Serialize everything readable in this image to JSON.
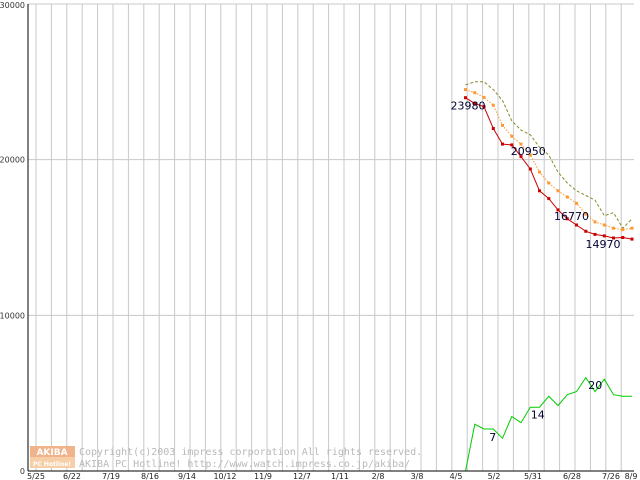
{
  "chart_data": {
    "type": "line",
    "xlabel": "",
    "ylabel": "",
    "ylim": [
      0,
      30000
    ],
    "grid": true,
    "legend": "none",
    "x_ticks": [
      "5/25",
      "6/22",
      "7/19",
      "8/16",
      "9/14",
      "10/12",
      "11/9",
      "12/7",
      "1/11",
      "2/8",
      "3/8",
      "4/5",
      "5/2",
      "5/31",
      "6/28",
      "7/26",
      "8/9"
    ],
    "y_ticks": [
      "0",
      "10000",
      "20000",
      "30000"
    ],
    "series": [
      {
        "color": "#cc0000",
        "style": "solid",
        "marker": "square",
        "values": [
          23980,
          23600,
          23400,
          22000,
          21000,
          20950,
          20200,
          19400,
          18000,
          17500,
          16770,
          16200,
          15800,
          15400,
          15200,
          15100,
          14970,
          15000,
          14900
        ]
      },
      {
        "color": "#ff9933",
        "style": "dotted",
        "marker": "square",
        "values": [
          24500,
          24300,
          24000,
          23500,
          22200,
          21500,
          21000,
          20300,
          19200,
          18500,
          18000,
          17600,
          17200,
          16500,
          16000,
          15800,
          15600,
          15500,
          15600
        ]
      },
      {
        "color": "#8a8a2a",
        "style": "dashed",
        "marker": "none",
        "values": [
          24800,
          25000,
          25000,
          24500,
          23800,
          22500,
          21900,
          21600,
          20800,
          20300,
          19200,
          18500,
          18000,
          17700,
          17400,
          16400,
          16600,
          15600,
          16200
        ]
      },
      {
        "color": "#00cc00",
        "style": "solid",
        "marker": "none",
        "values": [
          0,
          3000,
          2700,
          2700,
          2100,
          3500,
          3100,
          4100,
          4100,
          4800,
          4200,
          4900,
          5100,
          6000,
          5100,
          5900,
          4900,
          4800,
          4800
        ]
      }
    ],
    "annotations": [
      "23980",
      "20950",
      "16770",
      "14970",
      "7",
      "14",
      "20"
    ]
  },
  "watermark": {
    "logo_top": "AKIBA",
    "logo_bottom": "PC Hotline!",
    "line1": "Copyright(c)2003 impress corporation All rights reserved.",
    "line2": "AKIBA PC Hotline!  http://www.watch.impress.co.jp/akiba/"
  },
  "colors": {
    "grid": "#c8c8c8",
    "axis": "#000000",
    "logo": "#f0b48c"
  }
}
